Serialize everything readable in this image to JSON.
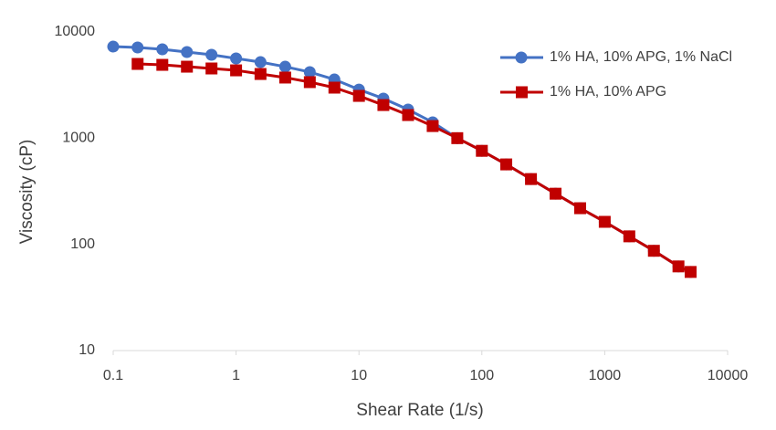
{
  "chart_data": {
    "type": "line",
    "x_label": "Shear Rate (1/s)",
    "y_label": "Viscosity (cP)",
    "x": [
      0.1,
      0.158,
      0.251,
      0.398,
      0.631,
      1,
      1.58,
      2.51,
      3.98,
      6.31,
      10,
      15.8,
      25.1,
      39.8,
      63.1,
      100,
      158,
      251,
      398,
      631,
      1000,
      1585,
      2512,
      3981,
      5000
    ],
    "series": [
      {
        "name": "1% HA, 10% APG, 1% NaCl",
        "color": "#4472c4",
        "marker": "circle",
        "values": [
          7280,
          7140,
          6870,
          6470,
          6100,
          5630,
          5200,
          4710,
          4190,
          3570,
          2870,
          2360,
          1860,
          1410,
          1000,
          760,
          566,
          412,
          300,
          219,
          163,
          119,
          87,
          62,
          55
        ]
      },
      {
        "name": "1% HA, 10% APG",
        "color": "#c00000",
        "marker": "square",
        "values": [
          null,
          5000,
          4900,
          4710,
          4530,
          4350,
          4020,
          3720,
          3370,
          2990,
          2500,
          2050,
          1650,
          1300,
          1000,
          760,
          566,
          412,
          300,
          219,
          163,
          119,
          87,
          62,
          55
        ]
      }
    ],
    "xlim": [
      0.1,
      10000
    ],
    "xticks": [
      0.1,
      1,
      10,
      100,
      1000,
      10000
    ],
    "xlog": true,
    "ylim": [
      10,
      10000
    ],
    "yticks": [
      10,
      100,
      1000,
      10000
    ],
    "ylog": true,
    "grid": false,
    "legend": "top-right"
  }
}
